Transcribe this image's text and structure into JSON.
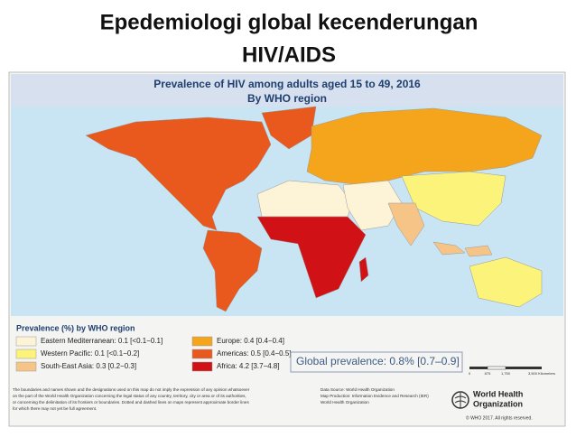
{
  "slide_title": [
    "Epedemiologi global kecenderungan",
    "HIV/AIDS"
  ],
  "map": {
    "title": "Prevalence of HIV among adults aged 15 to 49, 2016",
    "subtitle": "By WHO region",
    "legend_title": "Prevalence (%) by WHO region",
    "regions": [
      {
        "label": "Eastern Mediterranean: 0.1 [<0.1−0.1]",
        "color": "#fdf3d6"
      },
      {
        "label": "Western Pacific: 0.1 [<0.1−0.2]",
        "color": "#fcf37a"
      },
      {
        "label": "South-East Asia: 0.3 [0.2−0.3]",
        "color": "#f6c486"
      },
      {
        "label": "Europe: 0.4 [0.4−0.4]",
        "color": "#f4a51c"
      },
      {
        "label": "Americas: 0.5 [0.4−0.5]",
        "color": "#e9581c"
      },
      {
        "label": "Africa: 4.2 [3.7−4.8]",
        "color": "#d01216"
      }
    ],
    "global_prevalence": "Global prevalence: 0.8% [0.7–0.9]",
    "scale_labels": [
      "0",
      "875",
      "1,750",
      "3,500 Kilometers"
    ],
    "disclaimer": [
      "The boundaries and names shown and the designations used on this map do not imply the expression of any opinion whatsoever",
      "on the part of the World Health Organization concerning the legal status of any country, territory, city or area or of its authorities,",
      "or concerning the delimitation of its frontiers or boundaries. Dotted and dashed lines on maps represent approximate border lines",
      "for which there may not yet be full agreement."
    ],
    "source": [
      "Data Source: World Health Organization",
      "Map Production: Information Evidence and Research (IER)",
      "World Health Organization"
    ],
    "organization": [
      "World Health",
      "Organization"
    ],
    "copyright": "© WHO 2017. All rights reserved."
  }
}
